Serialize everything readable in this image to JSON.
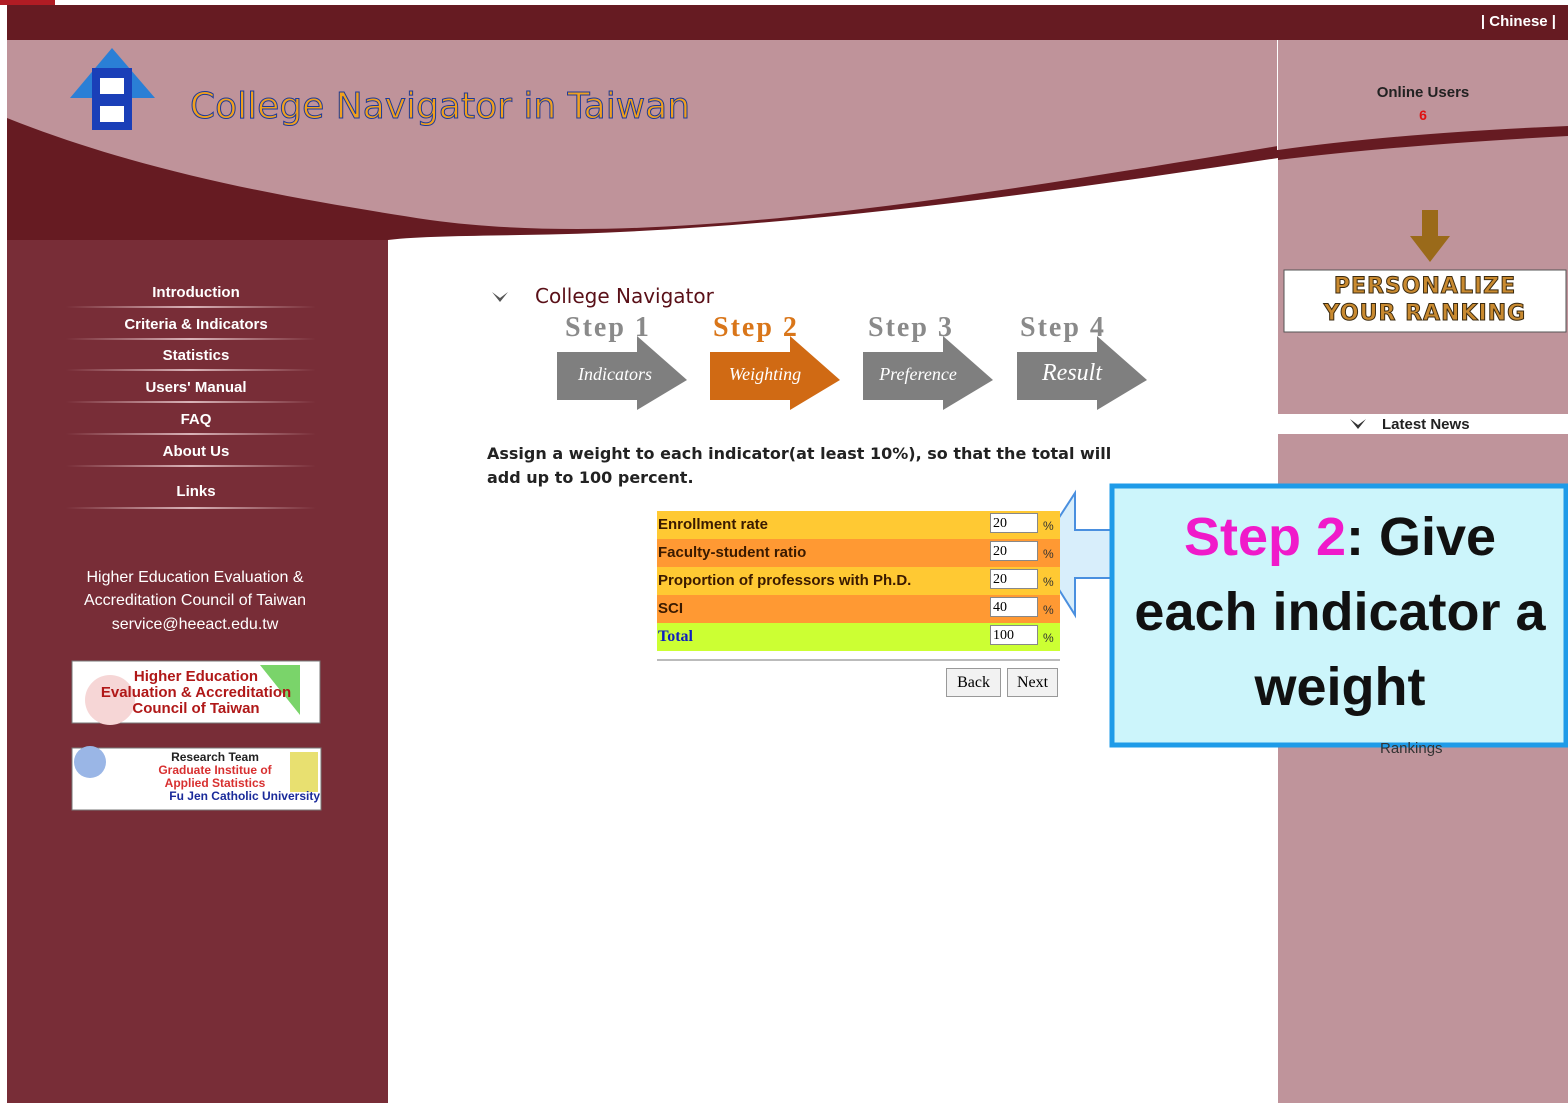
{
  "top_bar": {
    "language_link": "| Chinese |"
  },
  "header": {
    "title": "College Navigator in Taiwan",
    "online_users_label": "Online Users",
    "online_users_count": "6"
  },
  "nav": [
    "Introduction",
    "Criteria & Indicators",
    "Statistics",
    "Users' Manual",
    "FAQ",
    "About Us",
    "Links"
  ],
  "org": {
    "lines": [
      "Higher Education Evaluation &",
      "Accreditation Council of Taiwan",
      "service@heeact.edu.tw"
    ]
  },
  "logos": {
    "heeact": [
      "Higher Education",
      "Evaluation & Accreditation",
      "Council of Taiwan"
    ],
    "research": [
      "Research Team",
      "Graduate Institue of",
      "Applied Statistics",
      "Fu Jen Catholic University"
    ]
  },
  "content": {
    "heading": "College Navigator",
    "steps": [
      {
        "title": "Step 1",
        "label": "Indicators"
      },
      {
        "title": "Step 2",
        "label": "Weighting"
      },
      {
        "title": "Step 3",
        "label": "Preference"
      },
      {
        "title": "Step 4",
        "label": "Result"
      }
    ],
    "instruction": [
      "Assign a weight to each indicator(at least 10%), so that the total will",
      "add up to 100 percent."
    ],
    "table": {
      "rows": [
        [
          "Enrollment rate",
          "20",
          "%"
        ],
        [
          "Faculty-student ratio",
          "20",
          "%"
        ],
        [
          "Proportion of professors with Ph.D.",
          "20",
          "%"
        ],
        [
          "SCI",
          "40",
          "%"
        ],
        [
          "Total",
          "100",
          "%"
        ]
      ]
    },
    "buttons": [
      "Back",
      "Next"
    ]
  },
  "sidebar_right": {
    "banner": [
      "PERSONALIZE",
      "YOUR RANKING"
    ],
    "latest_news": "Latest News",
    "partial_text": "Rankings"
  },
  "callout": {
    "highlight": "Step 2",
    "text": ": Give each indicator a weight"
  }
}
